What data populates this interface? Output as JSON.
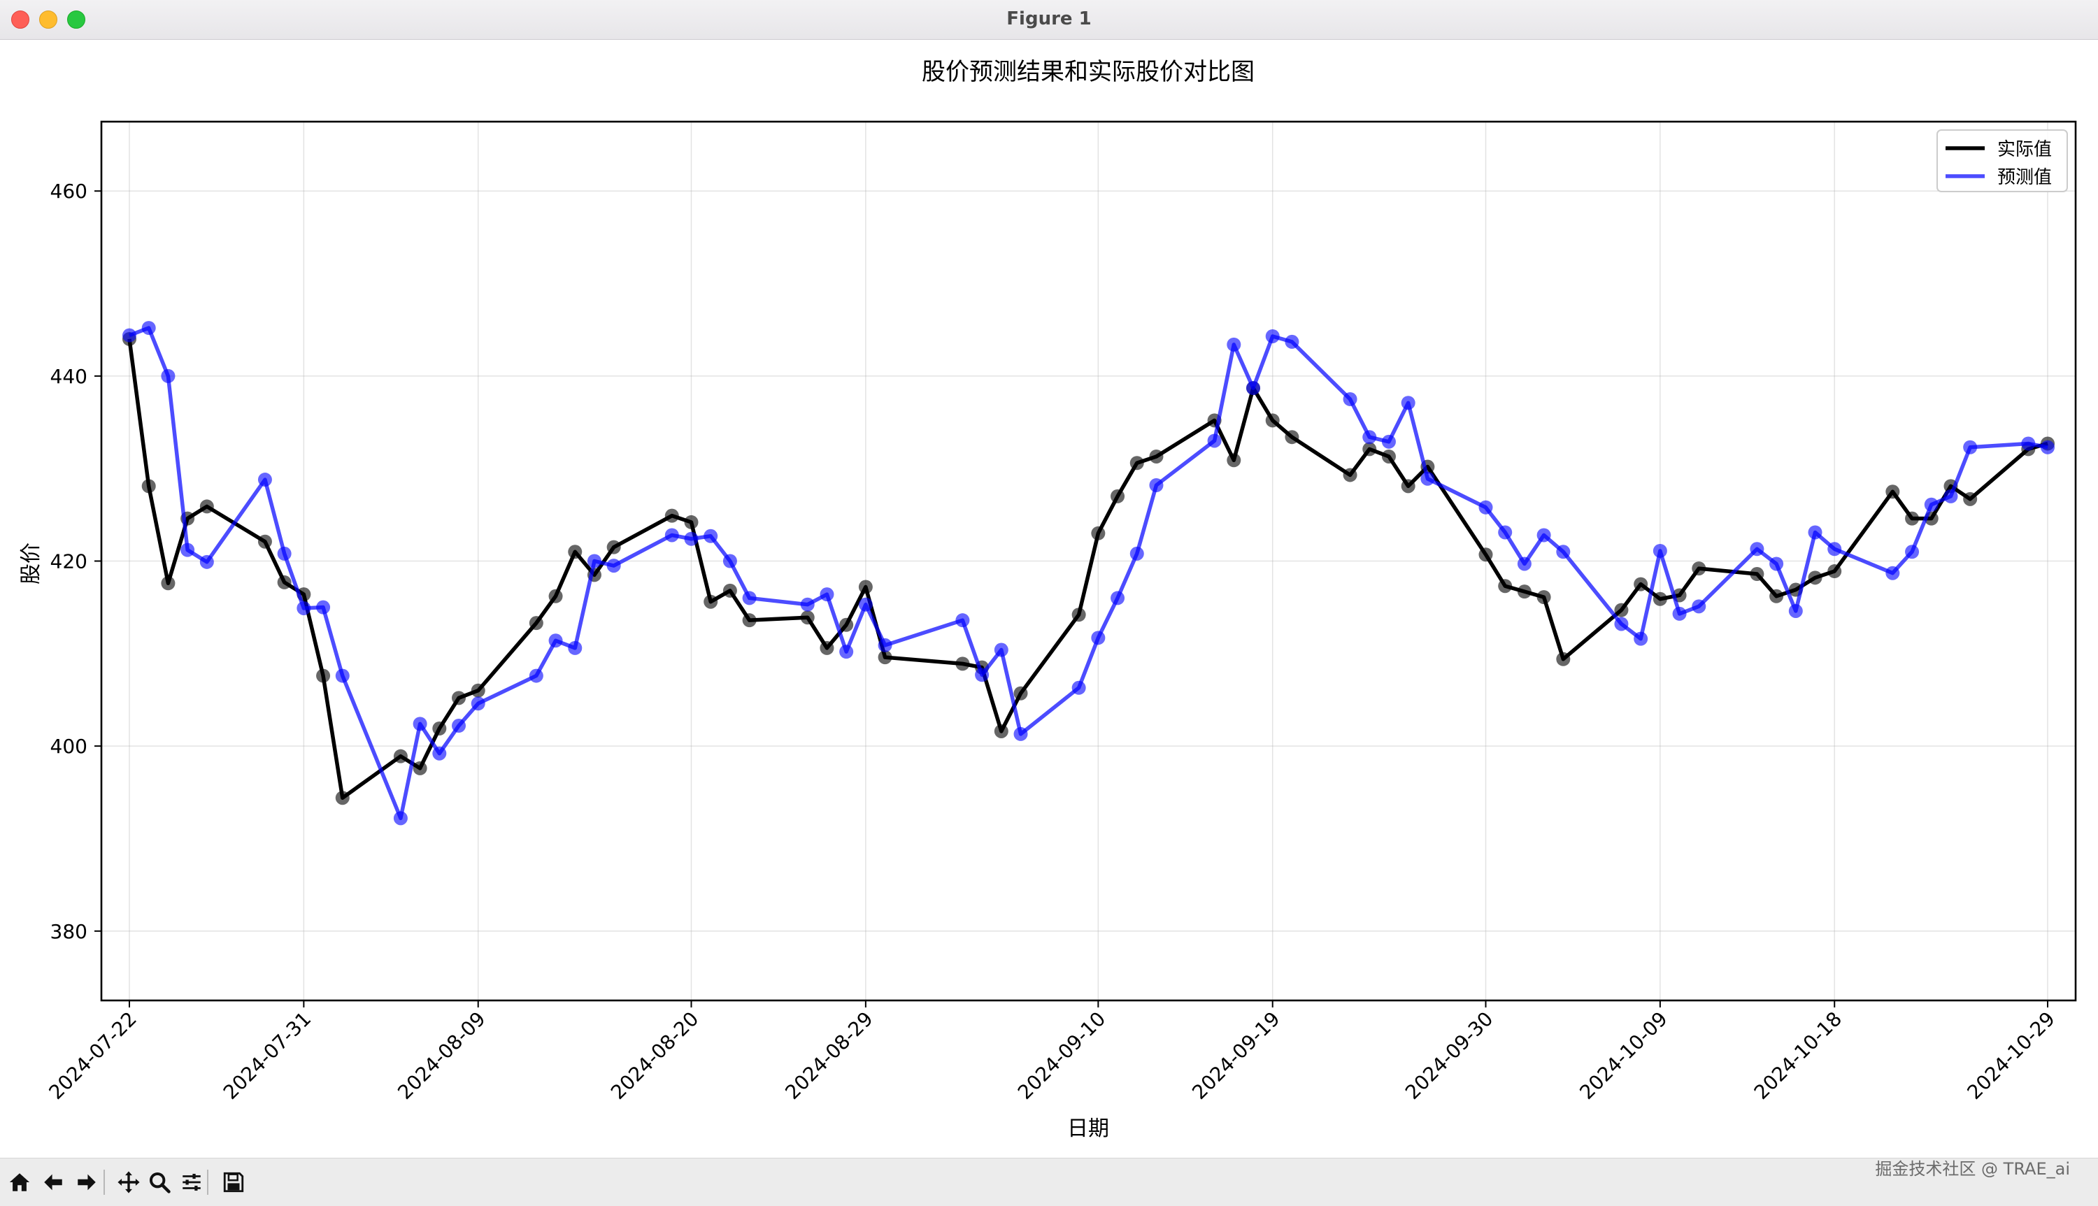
{
  "window": {
    "title": "Figure 1"
  },
  "watermark": "掘金技术社区 @ TRAE_ai",
  "toolbar": {
    "items": [
      {
        "name": "home-icon",
        "glyph": "home"
      },
      {
        "name": "back-arrow-icon",
        "glyph": "back"
      },
      {
        "name": "forward-arrow-icon",
        "glyph": "forward"
      },
      {
        "name": "pan-icon",
        "glyph": "pan"
      },
      {
        "name": "zoom-icon",
        "glyph": "zoom"
      },
      {
        "name": "configure-subplots-icon",
        "glyph": "sliders"
      },
      {
        "name": "save-figure-icon",
        "glyph": "save"
      }
    ]
  },
  "chart_data": {
    "type": "line",
    "title": "股价预测结果和实际股价对比图",
    "xlabel": "日期",
    "ylabel": "股价",
    "ylim": [
      372.5,
      467.5
    ],
    "yticks": [
      380,
      400,
      420,
      440,
      460
    ],
    "xticks": [
      "2024-07-22",
      "2024-07-31",
      "2024-08-09",
      "2024-08-20",
      "2024-08-29",
      "2024-09-10",
      "2024-09-19",
      "2024-09-30",
      "2024-10-09",
      "2024-10-18",
      "2024-10-29"
    ],
    "grid": true,
    "legend_position": "top-right",
    "x": [
      "2024-07-22",
      "2024-07-23",
      "2024-07-24",
      "2024-07-25",
      "2024-07-26",
      "2024-07-29",
      "2024-07-30",
      "2024-07-31",
      "2024-08-01",
      "2024-08-02",
      "2024-08-05",
      "2024-08-06",
      "2024-08-07",
      "2024-08-08",
      "2024-08-09",
      "2024-08-12",
      "2024-08-13",
      "2024-08-14",
      "2024-08-15",
      "2024-08-16",
      "2024-08-19",
      "2024-08-20",
      "2024-08-21",
      "2024-08-22",
      "2024-08-23",
      "2024-08-26",
      "2024-08-27",
      "2024-08-28",
      "2024-08-29",
      "2024-08-30",
      "2024-09-03",
      "2024-09-04",
      "2024-09-05",
      "2024-09-06",
      "2024-09-09",
      "2024-09-10",
      "2024-09-11",
      "2024-09-12",
      "2024-09-13",
      "2024-09-16",
      "2024-09-17",
      "2024-09-18",
      "2024-09-19",
      "2024-09-20",
      "2024-09-23",
      "2024-09-24",
      "2024-09-25",
      "2024-09-26",
      "2024-09-27",
      "2024-09-30",
      "2024-10-01",
      "2024-10-02",
      "2024-10-03",
      "2024-10-04",
      "2024-10-07",
      "2024-10-08",
      "2024-10-09",
      "2024-10-10",
      "2024-10-11",
      "2024-10-14",
      "2024-10-15",
      "2024-10-16",
      "2024-10-17",
      "2024-10-18",
      "2024-10-21",
      "2024-10-22",
      "2024-10-23",
      "2024-10-24",
      "2024-10-25",
      "2024-10-28",
      "2024-10-29"
    ],
    "series": [
      {
        "name": "实际值",
        "color": "#000000",
        "values": [
          444.0,
          428.1,
          417.6,
          424.6,
          425.9,
          422.1,
          417.7,
          416.4,
          407.6,
          394.4,
          398.9,
          397.6,
          401.9,
          405.2,
          406.0,
          413.3,
          416.2,
          421.0,
          418.5,
          421.5,
          424.9,
          424.2,
          415.6,
          416.8,
          413.6,
          413.9,
          410.6,
          413.1,
          417.2,
          409.6,
          408.9,
          408.5,
          401.6,
          405.7,
          414.2,
          423.0,
          427.0,
          430.6,
          431.3,
          435.2,
          430.9,
          438.7,
          435.2,
          433.4,
          429.3,
          432.1,
          431.3,
          428.1,
          430.2,
          420.7,
          417.3,
          416.7,
          416.1,
          409.4,
          414.7,
          417.5,
          415.9,
          416.3,
          419.2,
          418.6,
          416.2,
          416.9,
          418.2,
          418.9,
          427.5,
          424.6,
          424.6,
          428.1,
          426.7,
          432.1,
          432.7
        ]
      },
      {
        "name": "预测值",
        "color": "#0000ff",
        "values": [
          444.4,
          445.2,
          440.0,
          421.2,
          419.9,
          428.8,
          420.8,
          414.9,
          415.0,
          407.6,
          392.2,
          402.4,
          399.2,
          402.2,
          404.6,
          407.6,
          411.4,
          410.6,
          420.0,
          419.5,
          422.8,
          422.4,
          422.7,
          420.0,
          416.0,
          415.3,
          416.4,
          410.2,
          415.3,
          410.9,
          413.6,
          407.7,
          410.4,
          401.3,
          406.3,
          411.7,
          416.0,
          420.8,
          428.2,
          433.0,
          443.4,
          438.7,
          444.3,
          443.7,
          437.5,
          433.4,
          432.9,
          437.1,
          428.9,
          425.8,
          423.1,
          419.7,
          422.8,
          421.0,
          413.2,
          411.6,
          421.1,
          414.3,
          415.1,
          421.3,
          419.7,
          414.6,
          423.1,
          421.3,
          418.7,
          421.0,
          426.1,
          427.0,
          432.3,
          432.7,
          432.3
        ]
      }
    ]
  }
}
